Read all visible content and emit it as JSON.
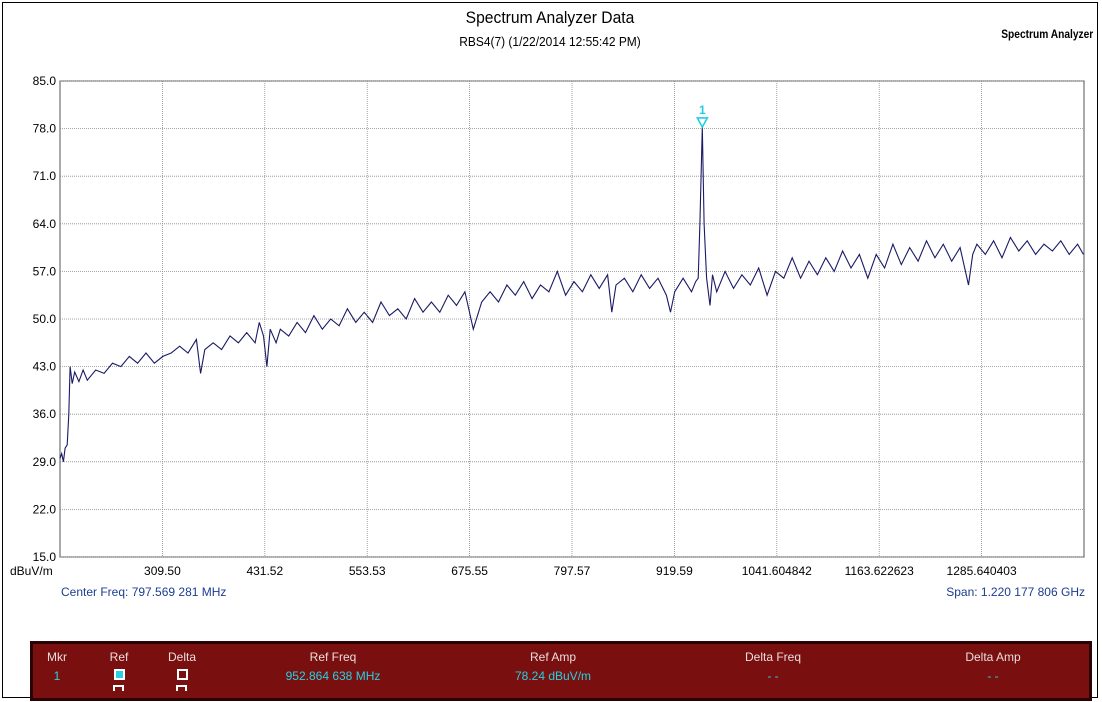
{
  "header": {
    "title": "Spectrum Analyzer Data",
    "subtitle": "RBS4(7) (1/22/2014 12:55:42 PM)",
    "corner_label": "Spectrum Analyzer"
  },
  "chart_data": {
    "type": "line",
    "ylabel": "dBuV/m",
    "ylim": [
      15.0,
      85.0
    ],
    "y_ticks": [
      "85.0",
      "78.0",
      "71.0",
      "64.0",
      "57.0",
      "50.0",
      "43.0",
      "36.0",
      "29.0",
      "22.0",
      "15.0"
    ],
    "x_ticks": [
      {
        "label": "309.50",
        "value": 309.5
      },
      {
        "label": "431.52",
        "value": 431.52
      },
      {
        "label": "553.53",
        "value": 553.53
      },
      {
        "label": "675.55",
        "value": 675.55
      },
      {
        "label": "797.57",
        "value": 797.57
      },
      {
        "label": "919.59",
        "value": 919.59
      },
      {
        "label": "1041.604842",
        "value": 1041.604842
      },
      {
        "label": "1163.622623",
        "value": 1163.622623
      },
      {
        "label": "1285.640403",
        "value": 1285.640403
      }
    ],
    "xlim": [
      187.48,
      1407.66
    ],
    "grid": true,
    "line_color": "#1a1a66",
    "series": [
      {
        "values": [
          [
            187.5,
            29.5
          ],
          [
            189.5,
            30.2
          ],
          [
            191.5,
            29.0
          ],
          [
            193.5,
            31.0
          ],
          [
            196,
            31.5
          ],
          [
            198,
            36.0
          ],
          [
            199.5,
            43.0
          ],
          [
            202,
            40.5
          ],
          [
            205,
            42.2
          ],
          [
            210,
            40.8
          ],
          [
            215,
            42.5
          ],
          [
            220,
            41.0
          ],
          [
            230,
            42.5
          ],
          [
            240,
            42.0
          ],
          [
            250,
            43.5
          ],
          [
            260,
            43.0
          ],
          [
            270,
            44.5
          ],
          [
            280,
            43.5
          ],
          [
            290,
            45.0
          ],
          [
            300,
            43.5
          ],
          [
            310,
            44.5
          ],
          [
            320,
            45.0
          ],
          [
            330,
            46.0
          ],
          [
            340,
            45.0
          ],
          [
            350,
            47.0
          ],
          [
            355,
            42.0
          ],
          [
            360,
            45.5
          ],
          [
            370,
            46.5
          ],
          [
            380,
            45.5
          ],
          [
            390,
            47.5
          ],
          [
            400,
            46.5
          ],
          [
            410,
            48.0
          ],
          [
            420,
            46.5
          ],
          [
            425,
            49.5
          ],
          [
            430,
            47.5
          ],
          [
            434,
            43.0
          ],
          [
            438,
            48.5
          ],
          [
            445,
            46.5
          ],
          [
            450,
            48.5
          ],
          [
            460,
            47.5
          ],
          [
            470,
            49.5
          ],
          [
            480,
            48.0
          ],
          [
            490,
            50.5
          ],
          [
            500,
            48.5
          ],
          [
            510,
            50.0
          ],
          [
            520,
            49.0
          ],
          [
            530,
            51.5
          ],
          [
            540,
            49.5
          ],
          [
            550,
            51.0
          ],
          [
            560,
            49.5
          ],
          [
            570,
            52.5
          ],
          [
            580,
            50.5
          ],
          [
            590,
            51.5
          ],
          [
            600,
            50.0
          ],
          [
            610,
            53.0
          ],
          [
            620,
            51.0
          ],
          [
            630,
            52.5
          ],
          [
            640,
            51.0
          ],
          [
            650,
            53.5
          ],
          [
            660,
            52.0
          ],
          [
            670,
            54.0
          ],
          [
            680,
            48.5
          ],
          [
            690,
            52.5
          ],
          [
            700,
            54.0
          ],
          [
            710,
            52.5
          ],
          [
            720,
            55.0
          ],
          [
            730,
            53.5
          ],
          [
            740,
            55.5
          ],
          [
            750,
            53.0
          ],
          [
            760,
            55.0
          ],
          [
            770,
            54.0
          ],
          [
            780,
            57.0
          ],
          [
            790,
            53.5
          ],
          [
            800,
            55.5
          ],
          [
            810,
            54.0
          ],
          [
            820,
            56.5
          ],
          [
            830,
            54.5
          ],
          [
            840,
            56.5
          ],
          [
            845,
            51.0
          ],
          [
            850,
            55.0
          ],
          [
            860,
            56.0
          ],
          [
            870,
            54.0
          ],
          [
            880,
            56.5
          ],
          [
            890,
            54.5
          ],
          [
            900,
            56.0
          ],
          [
            910,
            53.5
          ],
          [
            915,
            51.0
          ],
          [
            920,
            54.0
          ],
          [
            930,
            56.0
          ],
          [
            940,
            54.0
          ],
          [
            945,
            55.5
          ],
          [
            948,
            56.0
          ],
          [
            950,
            64.0
          ],
          [
            952.86,
            78.24
          ],
          [
            955,
            64.0
          ],
          [
            958,
            56.0
          ],
          [
            962,
            52.0
          ],
          [
            965,
            56.5
          ],
          [
            970,
            54.0
          ],
          [
            980,
            57.0
          ],
          [
            990,
            54.5
          ],
          [
            1000,
            56.5
          ],
          [
            1010,
            55.0
          ],
          [
            1020,
            57.5
          ],
          [
            1030,
            53.5
          ],
          [
            1040,
            57.0
          ],
          [
            1050,
            56.0
          ],
          [
            1060,
            59.0
          ],
          [
            1070,
            56.0
          ],
          [
            1080,
            58.5
          ],
          [
            1090,
            56.5
          ],
          [
            1100,
            59.0
          ],
          [
            1110,
            57.0
          ],
          [
            1120,
            60.0
          ],
          [
            1130,
            57.5
          ],
          [
            1140,
            59.5
          ],
          [
            1150,
            56.0
          ],
          [
            1160,
            59.5
          ],
          [
            1170,
            57.5
          ],
          [
            1180,
            61.0
          ],
          [
            1190,
            58.0
          ],
          [
            1200,
            60.5
          ],
          [
            1210,
            58.5
          ],
          [
            1220,
            61.5
          ],
          [
            1230,
            59.0
          ],
          [
            1240,
            61.0
          ],
          [
            1250,
            58.5
          ],
          [
            1260,
            60.5
          ],
          [
            1270,
            55.0
          ],
          [
            1275,
            59.5
          ],
          [
            1280,
            61.0
          ],
          [
            1290,
            59.5
          ],
          [
            1300,
            61.5
          ],
          [
            1310,
            59.0
          ],
          [
            1320,
            62.0
          ],
          [
            1330,
            60.0
          ],
          [
            1340,
            61.5
          ],
          [
            1350,
            59.5
          ],
          [
            1360,
            61.0
          ],
          [
            1370,
            60.0
          ],
          [
            1380,
            61.5
          ],
          [
            1390,
            59.5
          ],
          [
            1400,
            61.0
          ],
          [
            1407,
            59.5
          ]
        ]
      }
    ],
    "marker": {
      "label": "1",
      "freq": 952.86,
      "amp": 78.24,
      "color": "#1fcfe0"
    }
  },
  "footer": {
    "center_freq": "Center Freq: 797.569 281 MHz",
    "span": "Span: 1.220 177 806 GHz"
  },
  "marker_table": {
    "headers": [
      "Mkr",
      "Ref",
      "Delta",
      "Ref Freq",
      "Ref Amp",
      "Delta Freq",
      "Delta Amp"
    ],
    "rows": [
      {
        "mkr": "1",
        "ref_checked": true,
        "delta_checked": false,
        "ref_freq": "952.864 638 MHz",
        "ref_amp": "78.24 dBuV/m",
        "delta_freq": "- -",
        "delta_amp": "- -"
      }
    ],
    "colors": {
      "background": "#7a0f0f",
      "header_text": "#e9dede",
      "data_text": "#23d3e3"
    }
  }
}
